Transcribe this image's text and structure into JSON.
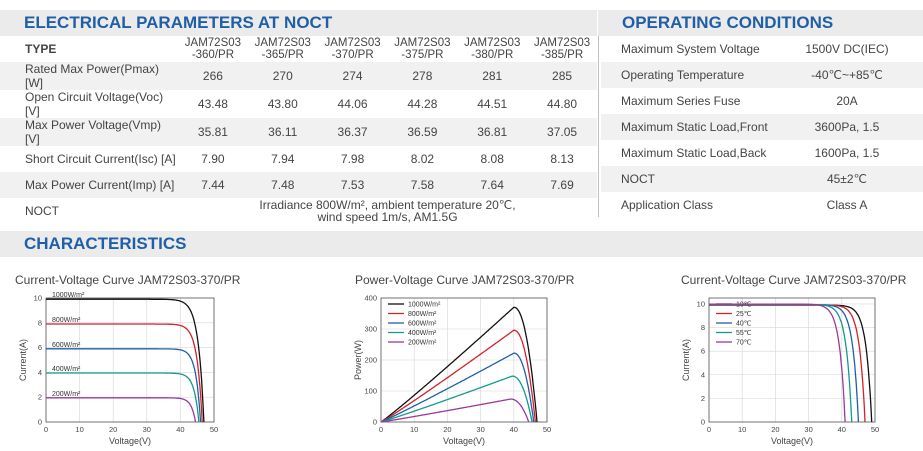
{
  "electrical": {
    "title": "ELECTRICAL PARAMETERS AT NOCT",
    "type_label": "TYPE",
    "models": [
      {
        "line1": "JAM72S03",
        "line2": "-360/PR"
      },
      {
        "line1": "JAM72S03",
        "line2": "-365/PR"
      },
      {
        "line1": "JAM72S03",
        "line2": "-370/PR"
      },
      {
        "line1": "JAM72S03",
        "line2": "-375/PR"
      },
      {
        "line1": "JAM72S03",
        "line2": "-380/PR"
      },
      {
        "line1": "JAM72S03",
        "line2": "-385/PR"
      }
    ],
    "rows": [
      {
        "label": "Rated Max Power(Pmax) [W]",
        "values": [
          "266",
          "270",
          "274",
          "278",
          "281",
          "285"
        ]
      },
      {
        "label": "Open Circuit Voltage(Voc) [V]",
        "values": [
          "43.48",
          "43.80",
          "44.06",
          "44.28",
          "44.51",
          "44.80"
        ]
      },
      {
        "label": "Max Power Voltage(Vmp) [V]",
        "values": [
          "35.81",
          "36.11",
          "36.37",
          "36.59",
          "36.81",
          "37.05"
        ]
      },
      {
        "label": "Short Circuit Current(Isc) [A]",
        "values": [
          "7.90",
          "7.94",
          "7.98",
          "8.02",
          "8.08",
          "8.13"
        ]
      },
      {
        "label": "Max Power Current(Imp) [A]",
        "values": [
          "7.44",
          "7.48",
          "7.53",
          "7.58",
          "7.64",
          "7.69"
        ]
      }
    ],
    "noct_label": "NOCT",
    "noct_line1": "Irradiance 800W/m², ambient temperature 20℃,",
    "noct_line2": "wind speed 1m/s, AM1.5G"
  },
  "operating": {
    "title": "OPERATING CONDITIONS",
    "rows": [
      {
        "label": "Maximum System Voltage",
        "value": "1500V DC(IEC)"
      },
      {
        "label": "Operating Temperature",
        "value": "-40℃~+85℃"
      },
      {
        "label": "Maximum Series Fuse",
        "value": "20A"
      },
      {
        "label": "Maximum Static Load,Front",
        "value": "3600Pa, 1.5"
      },
      {
        "label": "Maximum Static Load,Back",
        "value": "1600Pa, 1.5"
      },
      {
        "label": "NOCT",
        "value": "45±2℃"
      },
      {
        "label": "Application Class",
        "value": "Class A"
      }
    ]
  },
  "characteristics": {
    "title": "CHARACTERISTICS"
  },
  "chart_data": [
    {
      "type": "line",
      "title": "Current-Voltage Curve   JAM72S03-370/PR",
      "xlabel": "Voltage(V)",
      "ylabel": "Current(A)",
      "xlim": [
        0,
        50
      ],
      "ylim": [
        0,
        10
      ],
      "xticks": [
        "0",
        "10",
        "20",
        "30",
        "40",
        "50"
      ],
      "yticks": [
        "0",
        "2",
        "4",
        "6",
        "8",
        "10"
      ],
      "legend_position": "inline-top-left",
      "series": [
        {
          "name": "1000W/m²",
          "color": "#111111",
          "isc": 9.9,
          "voc": 47.0,
          "knee": 41.0
        },
        {
          "name": "800W/m²",
          "color": "#d4202a",
          "isc": 7.9,
          "voc": 46.5,
          "knee": 41.0
        },
        {
          "name": "600W/m²",
          "color": "#1f5fa8",
          "isc": 5.9,
          "voc": 46.0,
          "knee": 41.0
        },
        {
          "name": "400W/m²",
          "color": "#139a8c",
          "isc": 3.95,
          "voc": 45.5,
          "knee": 40.5
        },
        {
          "name": "200W/m²",
          "color": "#9b3a9a",
          "isc": 1.95,
          "voc": 44.5,
          "knee": 40.0
        }
      ]
    },
    {
      "type": "line",
      "title": "Power-Voltage Curve   JAM72S03-370/PR",
      "xlabel": "Voltage(V)",
      "ylabel": "Power(W)",
      "xlim": [
        0,
        50
      ],
      "ylim": [
        0,
        400
      ],
      "xticks": [
        "0",
        "10",
        "20",
        "30",
        "40",
        "50"
      ],
      "yticks": [
        "0",
        "100",
        "200",
        "300",
        "400"
      ],
      "legend_position": "top-left",
      "series": [
        {
          "name": "1000W/m²",
          "color": "#111111",
          "pmax": 370,
          "vmp": 40.0,
          "voc": 47.0
        },
        {
          "name": "800W/m²",
          "color": "#d4202a",
          "pmax": 296,
          "vmp": 40.0,
          "voc": 46.5
        },
        {
          "name": "600W/m²",
          "color": "#1f5fa8",
          "pmax": 222,
          "vmp": 40.0,
          "voc": 46.0
        },
        {
          "name": "400W/m²",
          "color": "#139a8c",
          "pmax": 148,
          "vmp": 39.5,
          "voc": 45.5
        },
        {
          "name": "200W/m²",
          "color": "#9b3a9a",
          "pmax": 74,
          "vmp": 39.0,
          "voc": 44.5
        }
      ]
    },
    {
      "type": "line",
      "title": "Current-Voltage Curve   JAM72S03-370/PR",
      "xlabel": "Voltage(V)",
      "ylabel": "Current(A)",
      "xlim": [
        0,
        50
      ],
      "ylim": [
        0,
        10.5
      ],
      "xticks": [
        "0",
        "10",
        "20",
        "30",
        "40",
        "50"
      ],
      "yticks": [
        "0",
        "2",
        "4",
        "6",
        "8",
        "10"
      ],
      "legend_position": "top-left",
      "series": [
        {
          "name": "10℃",
          "color": "#111111",
          "isc": 9.9,
          "voc": 49.0,
          "knee": 43.0
        },
        {
          "name": "25℃",
          "color": "#d4202a",
          "isc": 9.92,
          "voc": 47.0,
          "knee": 41.0
        },
        {
          "name": "40℃",
          "color": "#1f5fa8",
          "isc": 9.94,
          "voc": 45.0,
          "knee": 39.0
        },
        {
          "name": "55℃",
          "color": "#139a8c",
          "isc": 9.96,
          "voc": 43.0,
          "knee": 37.0
        },
        {
          "name": "70℃",
          "color": "#9b3a9a",
          "isc": 9.98,
          "voc": 41.0,
          "knee": 35.0
        }
      ]
    }
  ]
}
